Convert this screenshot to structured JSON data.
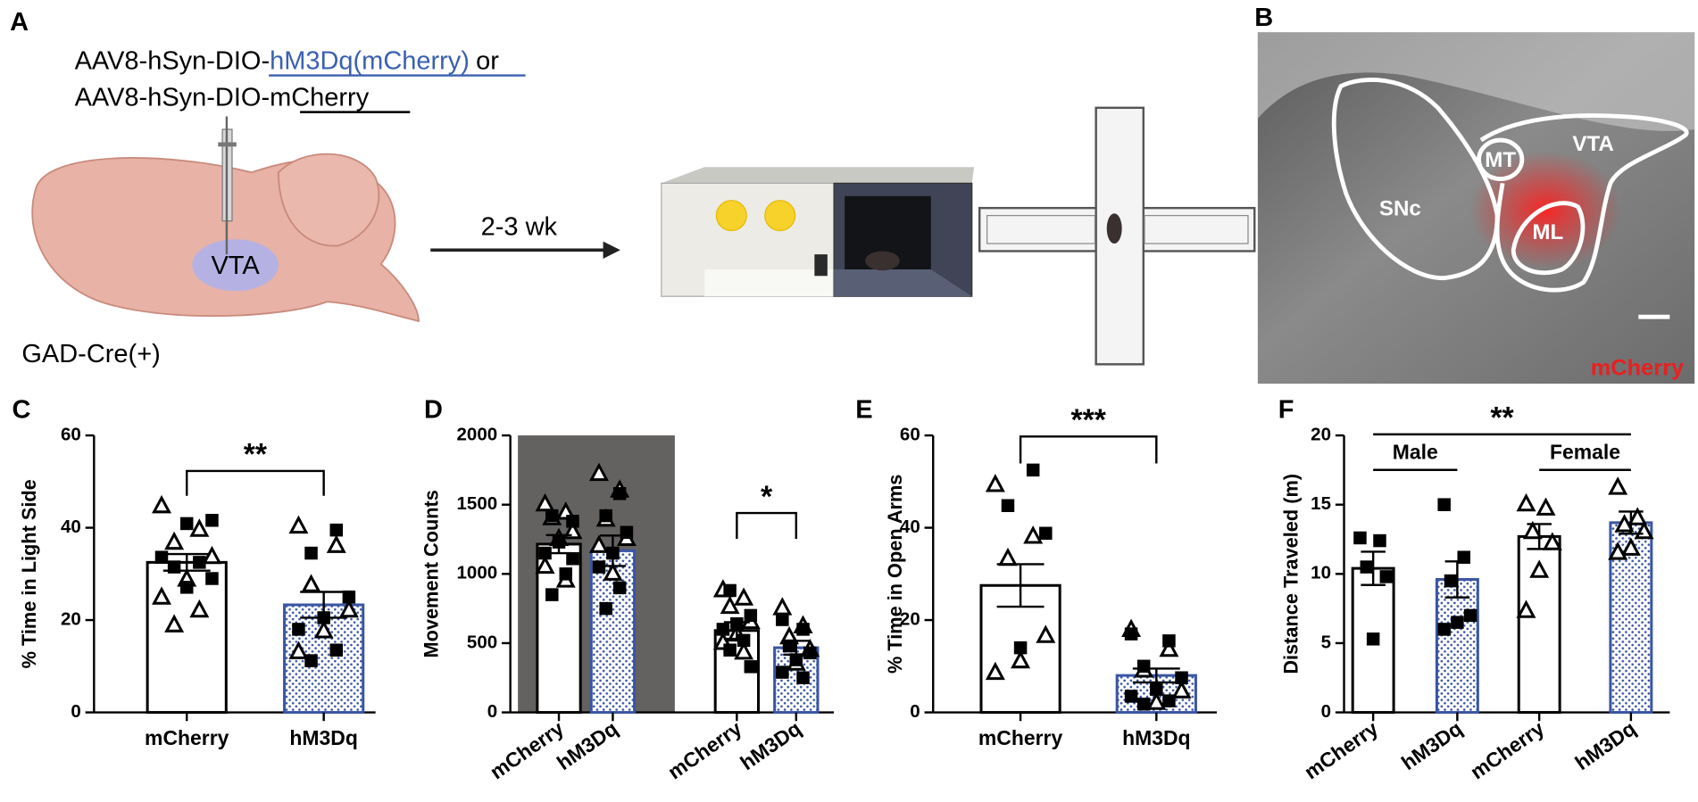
{
  "panel_a": {
    "letter": "A",
    "vector_prefix_1": "AAV8-hSyn-DIO-",
    "vector_1": "hM3Dq(mCherry)",
    "or": "or",
    "vector_prefix_2": "AAV8-hSyn-DIO-",
    "vector_2": "mCherry",
    "region": "VTA",
    "mouse_line": "GAD-Cre(+)",
    "delay": "2-3 wk"
  },
  "panel_b": {
    "letter": "B",
    "regions": [
      "SNc",
      "MT",
      "VTA",
      "ML"
    ],
    "stain": "mCherry"
  },
  "chart_data": [
    {
      "panel": "C",
      "type": "bar",
      "ylabel": "% Time in Light Side",
      "categories": [
        "mCherry",
        "hM3Dq"
      ],
      "values": [
        32.5,
        23.3
      ],
      "errors": [
        1.8,
        2.8
      ],
      "bar_styles": [
        "open",
        "dotted"
      ],
      "edge_colors": [
        "#000000",
        "#3a55a4"
      ],
      "points": [
        {
          "triangle": [
            44.6,
            39.5,
            36.7,
            33.6,
            28.7,
            24.8,
            22.0,
            18.8
          ],
          "square": [
            41.6,
            40.9,
            33.6,
            32.5,
            31.5,
            29.0,
            27.1
          ]
        },
        {
          "triangle": [
            40.2,
            36.0,
            27.5,
            22.0,
            17.5,
            13.0
          ],
          "square": [
            39.5,
            34.5,
            25.0,
            20.5,
            18.0,
            13.5,
            11.2
          ]
        }
      ],
      "ylim": [
        0,
        60
      ],
      "yticks": [
        0,
        20,
        40,
        60
      ],
      "comparisons": [
        {
          "from": 0,
          "to": 1,
          "label": "**"
        }
      ]
    },
    {
      "panel": "D",
      "type": "bar",
      "ylabel": "Movement Counts",
      "categories": [
        "mCherry",
        "hM3Dq",
        "mCherry",
        "hM3Dq"
      ],
      "values": [
        1215,
        1167,
        591,
        467
      ],
      "errors": [
        65,
        110,
        60,
        50
      ],
      "bar_styles": [
        "open",
        "dotted",
        "open",
        "dotted"
      ],
      "edge_colors": [
        "#000000",
        "#3a55a4",
        "#000000",
        "#3a55a4"
      ],
      "points": [
        {
          "triangle": [
            1500,
            1440,
            1400,
            1300,
            1250,
            1050,
            950
          ],
          "square": [
            1420,
            1380,
            1230,
            1150,
            1000,
            850,
            1110
          ]
        },
        {
          "triangle": [
            1720,
            1600,
            1390,
            1250,
            1000,
            1200
          ],
          "square": [
            1580,
            1420,
            1300,
            1150,
            1050,
            900,
            750
          ]
        },
        {
          "triangle": [
            880,
            820,
            760,
            650,
            560,
            500,
            430
          ],
          "square": [
            880,
            700,
            640,
            600,
            520,
            450,
            330
          ]
        },
        {
          "triangle": [
            750,
            620,
            540,
            450,
            350
          ],
          "square": [
            670,
            600,
            480,
            430,
            380,
            290,
            250
          ]
        }
      ],
      "shaded": {
        "from": 0,
        "to": 1,
        "color": "#646161"
      },
      "ylim": [
        0,
        2000
      ],
      "yticks": [
        0,
        500,
        1000,
        1500,
        2000
      ],
      "comparisons": [
        {
          "from": 2,
          "to": 3,
          "label": "*"
        }
      ]
    },
    {
      "panel": "E",
      "type": "bar",
      "ylabel": "% Time in Open Arms",
      "categories": [
        "mCherry",
        "hM3Dq"
      ],
      "values": [
        27.5,
        8.0
      ],
      "errors": [
        4.6,
        1.5
      ],
      "bar_styles": [
        "open",
        "dotted"
      ],
      "edge_colors": [
        "#000000",
        "#3a55a4"
      ],
      "points": [
        {
          "triangle": [
            49.2,
            38.0,
            33.2,
            16.5,
            11.0,
            8.5
          ],
          "square": [
            52.5,
            44.8,
            38.8,
            14.0
          ]
        },
        {
          "triangle": [
            17.8,
            13.5,
            9.0,
            4.5,
            2.0
          ],
          "square": [
            17.0,
            15.5,
            10.0,
            7.5,
            5.0,
            3.5,
            2.5,
            1.8
          ]
        }
      ],
      "ylim": [
        0,
        60
      ],
      "yticks": [
        0,
        20,
        40,
        60
      ],
      "comparisons": [
        {
          "from": 0,
          "to": 1,
          "label": "***"
        }
      ]
    },
    {
      "panel": "F",
      "type": "bar",
      "ylabel": "Distance Traveled (m)",
      "categories": [
        "mCherry",
        "hM3Dq",
        "mCherry",
        "hM3Dq"
      ],
      "values": [
        10.4,
        9.6,
        12.7,
        13.7
      ],
      "errors": [
        1.2,
        1.3,
        0.9,
        0.8
      ],
      "bar_styles": [
        "open",
        "dotted",
        "open",
        "dotted"
      ],
      "edge_colors": [
        "#000000",
        "#3a55a4",
        "#000000",
        "#3a55a4"
      ],
      "points": [
        {
          "triangle": [],
          "square": [
            12.6,
            12.4,
            10.5,
            9.8,
            5.3
          ]
        },
        {
          "triangle": [],
          "square": [
            15.0,
            11.2,
            9.5,
            7.0,
            6.5,
            6.0
          ]
        },
        {
          "triangle": [
            15.0,
            14.7,
            13.0,
            12.2,
            10.2,
            7.3
          ],
          "square": []
        },
        {
          "triangle": [
            16.2,
            14.0,
            13.5,
            13.0,
            11.8,
            11.5
          ],
          "square": []
        }
      ],
      "groups": [
        {
          "label": "Male",
          "from": 0,
          "to": 1
        },
        {
          "label": "Female",
          "from": 2,
          "to": 3
        }
      ],
      "ylim": [
        0,
        20
      ],
      "yticks": [
        0,
        5,
        10,
        15,
        20
      ],
      "comparisons": [
        {
          "from": 0,
          "to": 3,
          "label": "**"
        }
      ]
    }
  ]
}
